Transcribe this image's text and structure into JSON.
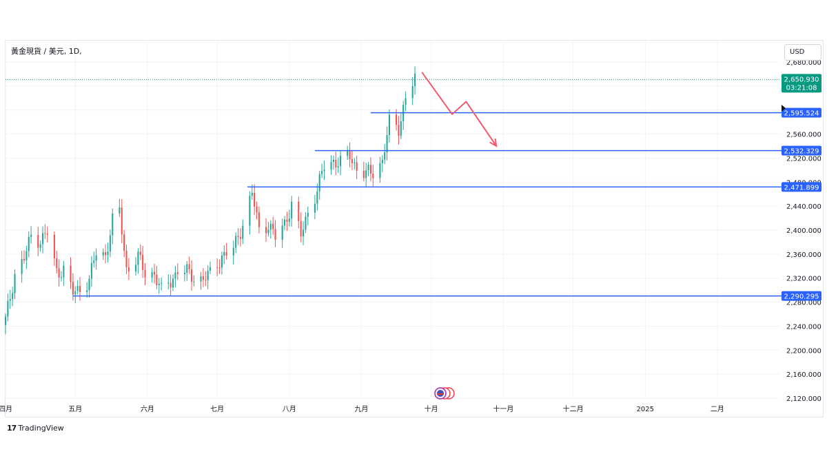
{
  "header": {
    "symbol_title": "黃金現貨 / 美元, 1D,",
    "currency_button": "USD"
  },
  "brand": {
    "name": "TradingView"
  },
  "colors": {
    "up": "#26a69a",
    "down": "#ef5350",
    "level_line": "#2962ff",
    "arrow": "#f05a6b",
    "last_price_bg": "#089981"
  },
  "chart_data": {
    "type": "candlestick",
    "y_range": [
      2120,
      2680
    ],
    "y_ticks": [
      "2,120.000",
      "2,160.000",
      "2,200.000",
      "2,240.000",
      "2,280.000",
      "2,320.000",
      "2,360.000",
      "2,400.000",
      "2,440.000",
      "2,480.000",
      "2,520.000",
      "2,560.000",
      "2,600.000",
      "2,640.000",
      "2,680.000"
    ],
    "x_range": [
      "2024-04-01",
      "2025-02-28"
    ],
    "x_ticks": [
      {
        "label": "四月",
        "date": "2024-04-01"
      },
      {
        "label": "五月",
        "date": "2024-05-01"
      },
      {
        "label": "六月",
        "date": "2024-06-01"
      },
      {
        "label": "七月",
        "date": "2024-07-01"
      },
      {
        "label": "八月",
        "date": "2024-08-01"
      },
      {
        "label": "九月",
        "date": "2024-09-01"
      },
      {
        "label": "十月",
        "date": "2024-10-01"
      },
      {
        "label": "十一月",
        "date": "2024-11-01"
      },
      {
        "label": "十二月",
        "date": "2024-12-01"
      },
      {
        "label": "2025",
        "date": "2025-01-01"
      },
      {
        "label": "二月",
        "date": "2025-02-01"
      }
    ],
    "closes": [
      {
        "date": "2024-04-01",
        "close": 2250
      },
      {
        "date": "2024-04-05",
        "close": 2328
      },
      {
        "date": "2024-04-09",
        "close": 2352
      },
      {
        "date": "2024-04-12",
        "close": 2390
      },
      {
        "date": "2024-04-16",
        "close": 2383
      },
      {
        "date": "2024-04-19",
        "close": 2395
      },
      {
        "date": "2024-04-23",
        "close": 2330
      },
      {
        "date": "2024-04-26",
        "close": 2335
      },
      {
        "date": "2024-04-30",
        "close": 2295
      },
      {
        "date": "2024-05-03",
        "close": 2302
      },
      {
        "date": "2024-05-07",
        "close": 2318
      },
      {
        "date": "2024-05-10",
        "close": 2362
      },
      {
        "date": "2024-05-14",
        "close": 2358
      },
      {
        "date": "2024-05-17",
        "close": 2415
      },
      {
        "date": "2024-05-20",
        "close": 2430
      },
      {
        "date": "2024-05-23",
        "close": 2335
      },
      {
        "date": "2024-05-28",
        "close": 2355
      },
      {
        "date": "2024-05-31",
        "close": 2328
      },
      {
        "date": "2024-06-04",
        "close": 2328
      },
      {
        "date": "2024-06-07",
        "close": 2297
      },
      {
        "date": "2024-06-11",
        "close": 2315
      },
      {
        "date": "2024-06-14",
        "close": 2333
      },
      {
        "date": "2024-06-18",
        "close": 2330
      },
      {
        "date": "2024-06-21",
        "close": 2322
      },
      {
        "date": "2024-06-25",
        "close": 2318
      },
      {
        "date": "2024-06-28",
        "close": 2327
      },
      {
        "date": "2024-07-03",
        "close": 2356
      },
      {
        "date": "2024-07-08",
        "close": 2368
      },
      {
        "date": "2024-07-12",
        "close": 2411
      },
      {
        "date": "2024-07-16",
        "close": 2461
      },
      {
        "date": "2024-07-19",
        "close": 2401
      },
      {
        "date": "2024-07-23",
        "close": 2410
      },
      {
        "date": "2024-07-26",
        "close": 2387
      },
      {
        "date": "2024-07-30",
        "close": 2411
      },
      {
        "date": "2024-08-02",
        "close": 2443
      },
      {
        "date": "2024-08-06",
        "close": 2390
      },
      {
        "date": "2024-08-09",
        "close": 2431
      },
      {
        "date": "2024-08-13",
        "close": 2466
      },
      {
        "date": "2024-08-16",
        "close": 2507
      },
      {
        "date": "2024-08-20",
        "close": 2515
      },
      {
        "date": "2024-08-23",
        "close": 2512
      },
      {
        "date": "2024-08-27",
        "close": 2524
      },
      {
        "date": "2024-08-30",
        "close": 2503
      },
      {
        "date": "2024-09-03",
        "close": 2493
      },
      {
        "date": "2024-09-06",
        "close": 2497
      },
      {
        "date": "2024-09-10",
        "close": 2516
      },
      {
        "date": "2024-09-13",
        "close": 2578
      },
      {
        "date": "2024-09-17",
        "close": 2569
      },
      {
        "date": "2024-09-20",
        "close": 2622
      },
      {
        "date": "2024-09-24",
        "close": 2650
      }
    ],
    "horizontal_levels": [
      {
        "value": 2595.524,
        "label": "2,595.524",
        "from_date": "2024-09-05"
      },
      {
        "value": 2532.329,
        "label": "2,532.329",
        "from_date": "2024-08-12"
      },
      {
        "value": 2471.899,
        "label": "2,471.899",
        "from_date": "2024-07-14"
      },
      {
        "value": 2290.295,
        "label": "2,290.295",
        "from_date": "2024-04-30"
      }
    ],
    "last_price": {
      "value": 2650.93,
      "label": "2,650.930",
      "countdown": "03:21:08"
    },
    "projection_path": [
      {
        "date": "2024-09-27",
        "price": 2663
      },
      {
        "date": "2024-10-10",
        "price": 2593
      },
      {
        "date": "2024-10-16",
        "price": 2614
      },
      {
        "date": "2024-10-29",
        "price": 2540
      }
    ]
  }
}
